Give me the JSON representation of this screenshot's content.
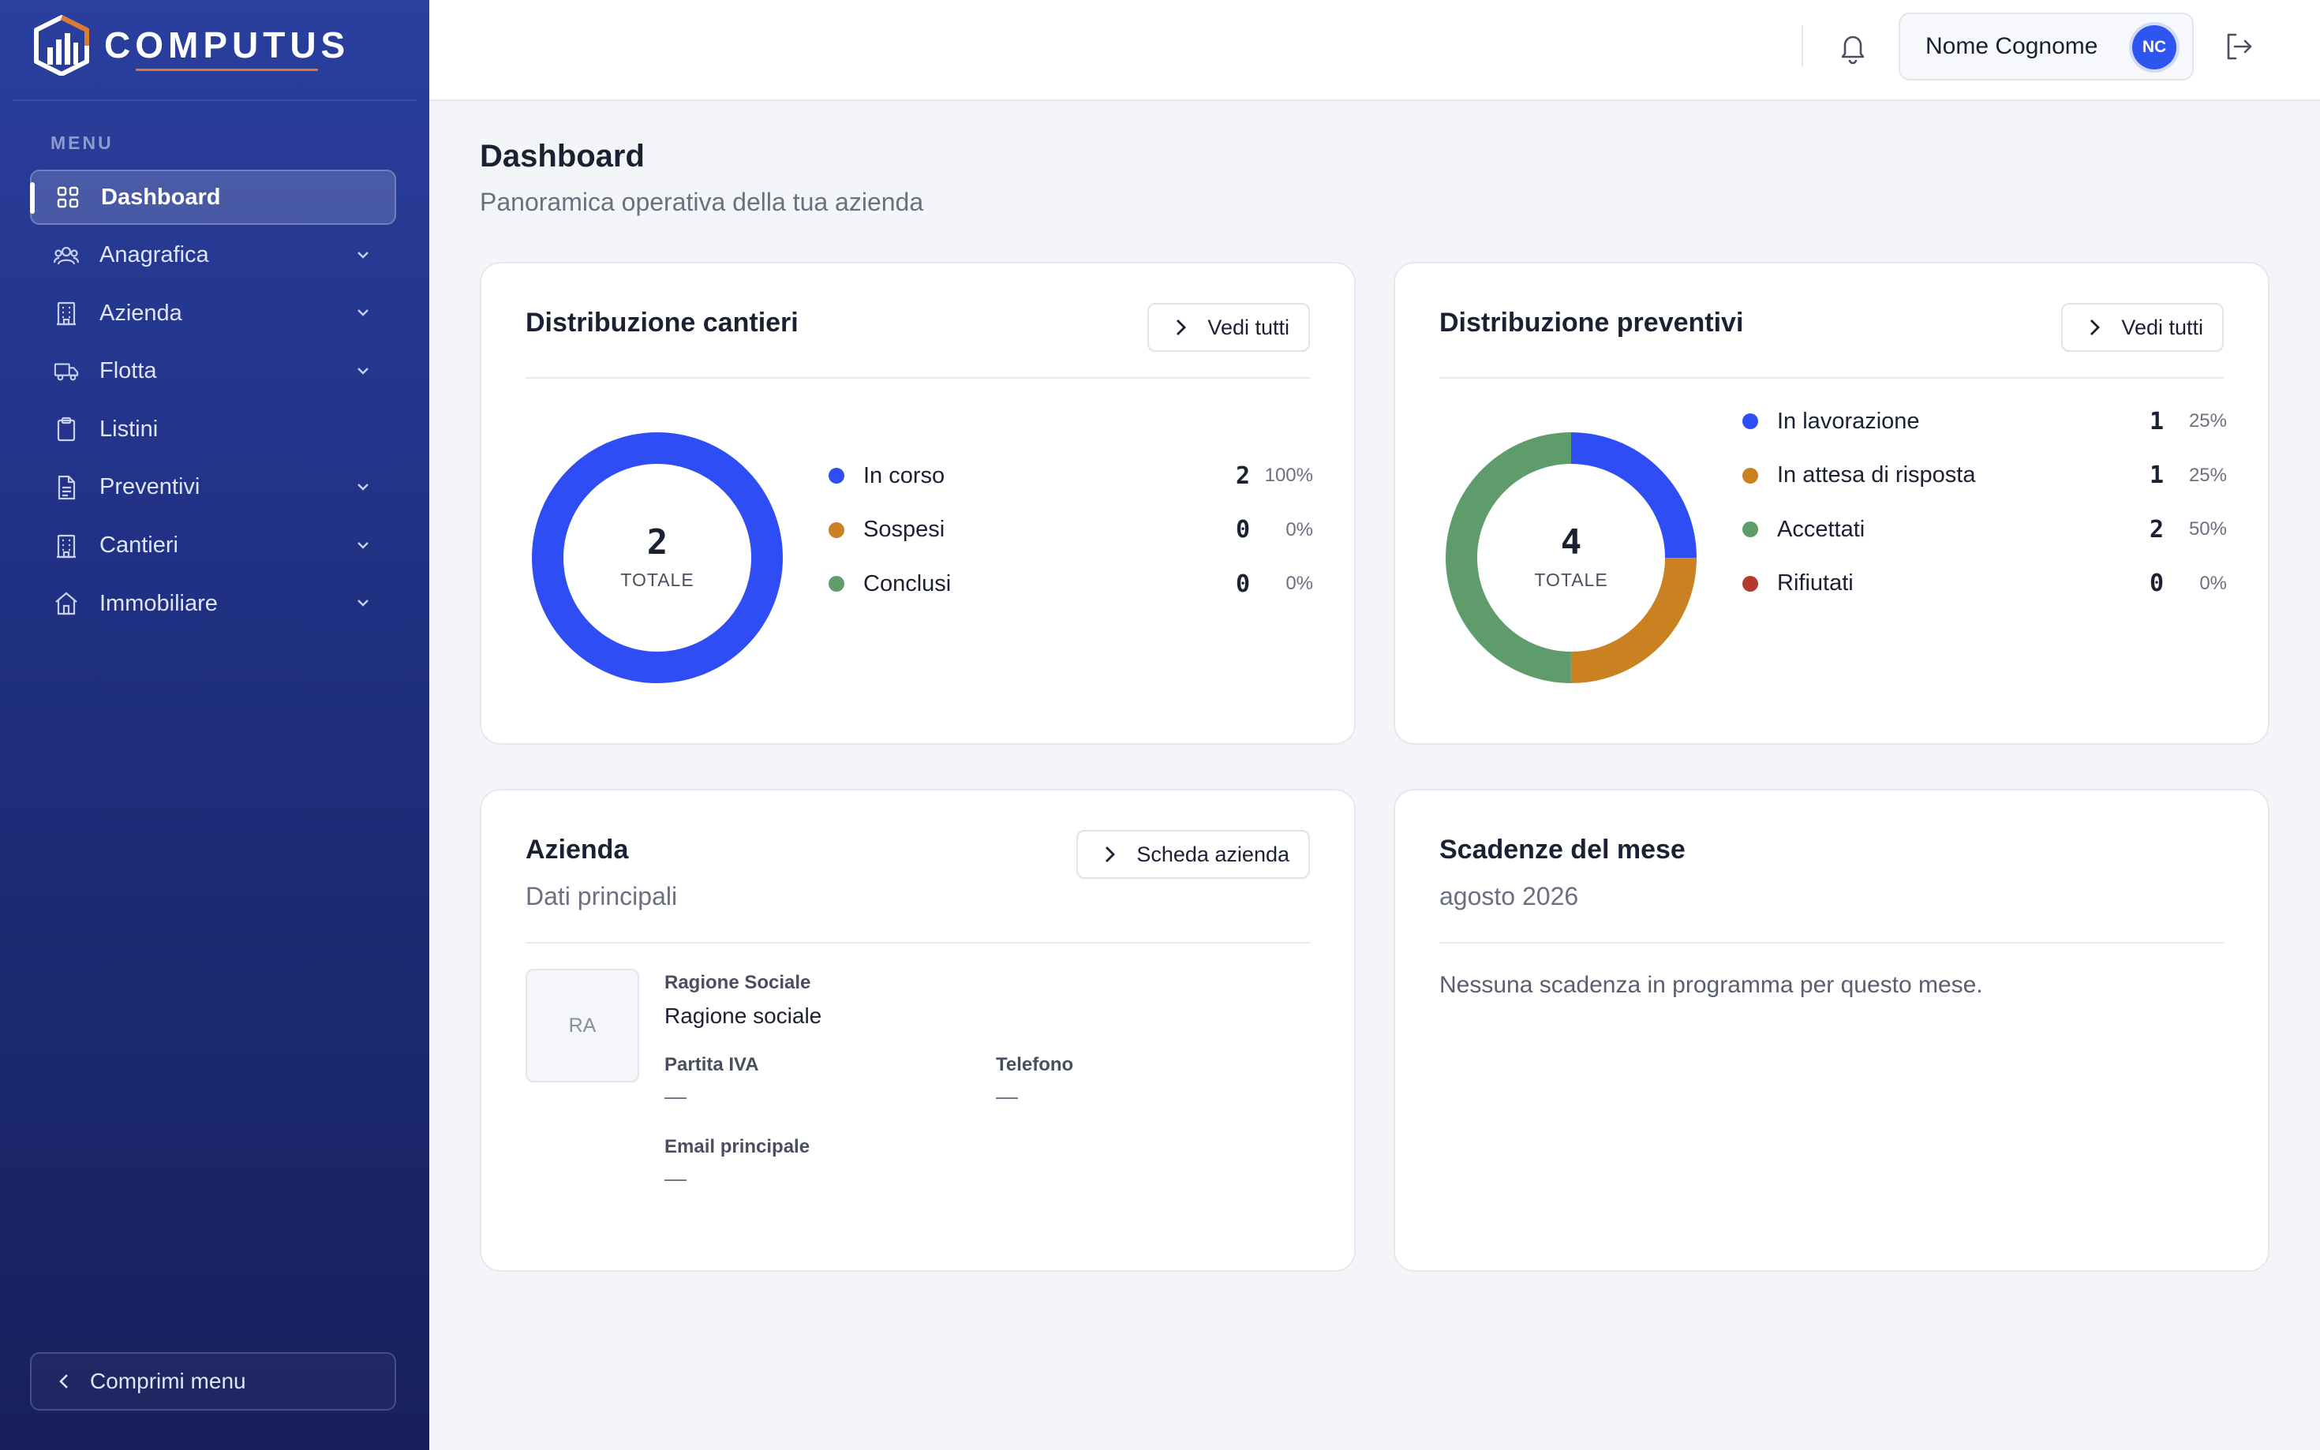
{
  "brand": {
    "name": "COMPUTUS"
  },
  "sidebar": {
    "menu_title": "MENU",
    "items": [
      {
        "label": "Dashboard",
        "icon": "grid-icon",
        "active": true,
        "has_submenu": false
      },
      {
        "label": "Anagrafica",
        "icon": "users-icon",
        "has_submenu": true
      },
      {
        "label": "Azienda",
        "icon": "building-icon",
        "has_submenu": true
      },
      {
        "label": "Flotta",
        "icon": "truck-icon",
        "has_submenu": true
      },
      {
        "label": "Listini",
        "icon": "clipboard-icon",
        "has_submenu": false
      },
      {
        "label": "Preventivi",
        "icon": "document-icon",
        "has_submenu": true
      },
      {
        "label": "Cantieri",
        "icon": "building-icon",
        "has_submenu": true
      },
      {
        "label": "Immobiliare",
        "icon": "home-icon",
        "has_submenu": true
      }
    ],
    "collapse_label": "Comprimi menu"
  },
  "topbar": {
    "user_name": "Nome Cognome",
    "user_initials": "NC"
  },
  "page": {
    "title": "Dashboard",
    "subtitle": "Panoramica operativa della tua azienda"
  },
  "cantieri": {
    "title": "Distribuzione cantieri",
    "button": "Vedi tutti",
    "total": "2",
    "total_label": "TOTALE",
    "legend": [
      {
        "label": "In corso",
        "value": "2",
        "pct": "100%",
        "color": "#2f4df5"
      },
      {
        "label": "Sospesi",
        "value": "0",
        "pct": "0%",
        "color": "#c98121"
      },
      {
        "label": "Conclusi",
        "value": "0",
        "pct": "0%",
        "color": "#5e9c6c"
      }
    ]
  },
  "preventivi": {
    "title": "Distribuzione preventivi",
    "button": "Vedi tutti",
    "total": "4",
    "total_label": "TOTALE",
    "legend": [
      {
        "label": "In lavorazione",
        "value": "1",
        "pct": "25%",
        "color": "#2f4df5"
      },
      {
        "label": "In attesa di risposta",
        "value": "1",
        "pct": "25%",
        "color": "#c98121"
      },
      {
        "label": "Accettati",
        "value": "2",
        "pct": "50%",
        "color": "#5e9c6c"
      },
      {
        "label": "Rifiutati",
        "value": "0",
        "pct": "0%",
        "color": "#b53a2e"
      }
    ]
  },
  "azienda": {
    "title": "Azienda",
    "subtitle": "Dati principali",
    "button": "Scheda azienda",
    "logo_initials": "RA",
    "ragione_label": "Ragione Sociale",
    "ragione_value": "Ragione sociale",
    "piva_label": "Partita IVA",
    "piva_value": "—",
    "telefono_label": "Telefono",
    "telefono_value": "—",
    "email_label": "Email principale",
    "email_value": "—"
  },
  "scadenze": {
    "title": "Scadenze del mese",
    "subtitle": "agosto 2026",
    "empty_message": "Nessuna scadenza in programma per questo mese."
  },
  "chart_data": [
    {
      "type": "pie",
      "title": "Distribuzione cantieri",
      "categories": [
        "In corso",
        "Sospesi",
        "Conclusi"
      ],
      "values": [
        2,
        0,
        0
      ],
      "colors": [
        "#2f4df5",
        "#c98121",
        "#5e9c6c"
      ]
    },
    {
      "type": "pie",
      "title": "Distribuzione preventivi",
      "categories": [
        "In lavorazione",
        "In attesa di risposta",
        "Accettati",
        "Rifiutati"
      ],
      "values": [
        1,
        1,
        2,
        0
      ],
      "colors": [
        "#2f4df5",
        "#c98121",
        "#5e9c6c",
        "#b53a2e"
      ]
    }
  ]
}
